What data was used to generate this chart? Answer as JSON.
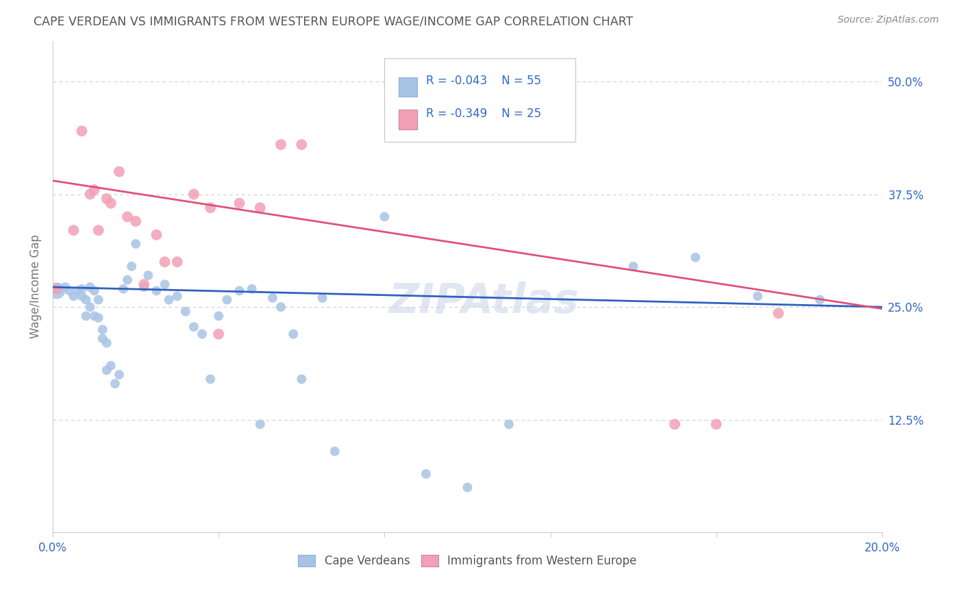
{
  "title": "CAPE VERDEAN VS IMMIGRANTS FROM WESTERN EUROPE WAGE/INCOME GAP CORRELATION CHART",
  "source": "Source: ZipAtlas.com",
  "ylabel": "Wage/Income Gap",
  "yticks": [
    0.0,
    0.125,
    0.25,
    0.375,
    0.5
  ],
  "ytick_labels": [
    "",
    "12.5%",
    "25.0%",
    "37.5%",
    "50.0%"
  ],
  "xlim": [
    0.0,
    0.2
  ],
  "ylim": [
    0.0,
    0.545
  ],
  "blue_R": "-0.043",
  "blue_N": "55",
  "pink_R": "-0.349",
  "pink_N": "25",
  "legend_label_blue": "Cape Verdeans",
  "legend_label_pink": "Immigrants from Western Europe",
  "blue_color": "#a8c4e5",
  "pink_color": "#f2a0b5",
  "blue_line_color": "#3060c0",
  "pink_line_color": "#e0507a",
  "text_color": "#3368c8",
  "title_color": "#555555",
  "source_color": "#888888",
  "axis_color": "#cccccc",
  "grid_color": "#cccccc",
  "blue_x": [
    0.001,
    0.003,
    0.004,
    0.005,
    0.006,
    0.007,
    0.007,
    0.008,
    0.008,
    0.009,
    0.009,
    0.01,
    0.01,
    0.011,
    0.011,
    0.012,
    0.012,
    0.013,
    0.013,
    0.014,
    0.015,
    0.016,
    0.017,
    0.018,
    0.019,
    0.02,
    0.022,
    0.023,
    0.025,
    0.027,
    0.028,
    0.03,
    0.032,
    0.034,
    0.036,
    0.038,
    0.04,
    0.042,
    0.045,
    0.048,
    0.05,
    0.053,
    0.055,
    0.058,
    0.06,
    0.065,
    0.068,
    0.08,
    0.09,
    0.1,
    0.11,
    0.14,
    0.155,
    0.17,
    0.185
  ],
  "blue_y": [
    0.268,
    0.272,
    0.268,
    0.262,
    0.268,
    0.27,
    0.262,
    0.258,
    0.24,
    0.272,
    0.25,
    0.268,
    0.24,
    0.258,
    0.238,
    0.225,
    0.215,
    0.21,
    0.18,
    0.185,
    0.165,
    0.175,
    0.27,
    0.28,
    0.295,
    0.32,
    0.272,
    0.285,
    0.268,
    0.275,
    0.258,
    0.262,
    0.245,
    0.228,
    0.22,
    0.17,
    0.24,
    0.258,
    0.268,
    0.27,
    0.12,
    0.26,
    0.25,
    0.22,
    0.17,
    0.26,
    0.09,
    0.35,
    0.065,
    0.05,
    0.12,
    0.295,
    0.305,
    0.262,
    0.258
  ],
  "blue_sizes": [
    300,
    100,
    100,
    100,
    100,
    100,
    100,
    100,
    100,
    100,
    100,
    100,
    100,
    100,
    100,
    100,
    100,
    100,
    100,
    100,
    100,
    100,
    100,
    100,
    100,
    100,
    100,
    100,
    100,
    100,
    100,
    100,
    100,
    100,
    100,
    100,
    100,
    100,
    100,
    100,
    100,
    100,
    100,
    100,
    100,
    100,
    100,
    100,
    100,
    100,
    100,
    100,
    100,
    100,
    100
  ],
  "pink_x": [
    0.001,
    0.005,
    0.007,
    0.009,
    0.01,
    0.011,
    0.013,
    0.014,
    0.016,
    0.018,
    0.02,
    0.022,
    0.025,
    0.027,
    0.03,
    0.034,
    0.038,
    0.04,
    0.045,
    0.05,
    0.055,
    0.06,
    0.15,
    0.16,
    0.175
  ],
  "pink_y": [
    0.27,
    0.335,
    0.445,
    0.375,
    0.38,
    0.335,
    0.37,
    0.365,
    0.4,
    0.35,
    0.345,
    0.275,
    0.33,
    0.3,
    0.3,
    0.375,
    0.36,
    0.22,
    0.365,
    0.36,
    0.43,
    0.43,
    0.12,
    0.12,
    0.243
  ],
  "blue_trend_x": [
    0.0,
    0.2
  ],
  "blue_trend_y": [
    0.272,
    0.25
  ],
  "pink_trend_x": [
    0.0,
    0.2
  ],
  "pink_trend_y": [
    0.39,
    0.248
  ]
}
